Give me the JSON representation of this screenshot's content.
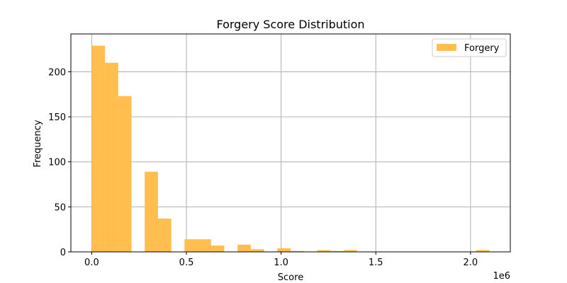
{
  "chart_data": {
    "type": "bar",
    "title": "Forgery Score Distribution",
    "xlabel": "Score",
    "ylabel": "Frequency",
    "x_scale_note": "1e6",
    "xlim": [
      -0.11,
      2.21
    ],
    "ylim": [
      0,
      242
    ],
    "xticks": [
      {
        "value": 0.0,
        "label": "0.0"
      },
      {
        "value": 0.5,
        "label": "0.5"
      },
      {
        "value": 1.0,
        "label": "1.0"
      },
      {
        "value": 1.5,
        "label": "1.5"
      },
      {
        "value": 2.0,
        "label": "2.0"
      }
    ],
    "yticks": [
      {
        "value": 0,
        "label": "0"
      },
      {
        "value": 50,
        "label": "50"
      },
      {
        "value": 100,
        "label": "100"
      },
      {
        "value": 150,
        "label": "150"
      },
      {
        "value": 200,
        "label": "200"
      }
    ],
    "grid": true,
    "legend_position": "top-right",
    "bin_width": 0.07,
    "series": [
      {
        "name": "Forgery",
        "color": "#ffbe4d",
        "bins": [
          {
            "x": 0.0,
            "count": 229
          },
          {
            "x": 0.07,
            "count": 210
          },
          {
            "x": 0.14,
            "count": 173
          },
          {
            "x": 0.28,
            "count": 89
          },
          {
            "x": 0.35,
            "count": 37
          },
          {
            "x": 0.49,
            "count": 14
          },
          {
            "x": 0.56,
            "count": 14
          },
          {
            "x": 0.63,
            "count": 7
          },
          {
            "x": 0.77,
            "count": 8
          },
          {
            "x": 0.84,
            "count": 3
          },
          {
            "x": 0.98,
            "count": 4
          },
          {
            "x": 1.05,
            "count": 1
          },
          {
            "x": 1.19,
            "count": 2
          },
          {
            "x": 1.26,
            "count": 1
          },
          {
            "x": 1.33,
            "count": 2
          },
          {
            "x": 2.03,
            "count": 2
          }
        ]
      }
    ]
  }
}
